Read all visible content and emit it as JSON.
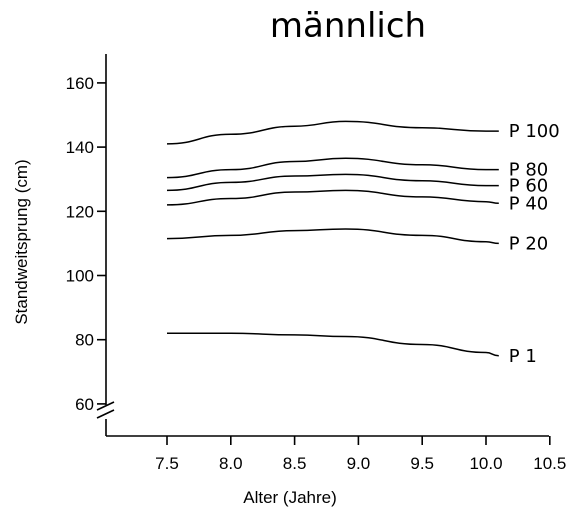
{
  "chart_data": {
    "type": "line",
    "title": "männlich",
    "xlabel": "Alter (Jahre)",
    "ylabel": "Standweitsprung (cm)",
    "xlim": [
      7.0,
      10.5
    ],
    "ylim": [
      50,
      160
    ],
    "x_ticks": [
      "7.5",
      "8.0",
      "8.5",
      "9.0",
      "9.5",
      "10.0",
      "10.5"
    ],
    "y_ticks": [
      "60",
      "80",
      "100",
      "120",
      "140",
      "160"
    ],
    "axis_break": "y",
    "grid": false,
    "legend": "inline-right",
    "series": [
      {
        "name": "P 100",
        "x": [
          7.5,
          8.0,
          8.5,
          8.9,
          9.5,
          10.0,
          10.1
        ],
        "y": [
          141,
          144,
          146.5,
          148,
          146,
          145,
          145
        ]
      },
      {
        "name": "P 80",
        "x": [
          7.5,
          8.0,
          8.5,
          8.9,
          9.5,
          10.0,
          10.1
        ],
        "y": [
          130.5,
          133,
          135.5,
          136.5,
          134.5,
          133,
          133
        ]
      },
      {
        "name": "P 60",
        "x": [
          7.5,
          8.0,
          8.5,
          8.9,
          9.5,
          10.0,
          10.1
        ],
        "y": [
          126.5,
          129,
          131,
          131.5,
          129.5,
          128,
          128
        ]
      },
      {
        "name": "P 40",
        "x": [
          7.5,
          8.0,
          8.5,
          8.9,
          9.5,
          10.0,
          10.1
        ],
        "y": [
          122,
          124,
          126,
          126.5,
          124.5,
          123,
          122.5
        ]
      },
      {
        "name": "P 20",
        "x": [
          7.5,
          8.0,
          8.5,
          8.9,
          9.5,
          10.0,
          10.1
        ],
        "y": [
          111.5,
          112.5,
          114,
          114.5,
          112.5,
          110.5,
          110
        ]
      },
      {
        "name": "P 1",
        "x": [
          7.5,
          8.0,
          8.5,
          8.9,
          9.5,
          10.0,
          10.1
        ],
        "y": [
          82,
          82,
          81.5,
          81,
          78.5,
          76,
          75
        ]
      }
    ],
    "colors": {
      "line": "#000000",
      "axis": "#000000",
      "background": "#ffffff"
    }
  }
}
